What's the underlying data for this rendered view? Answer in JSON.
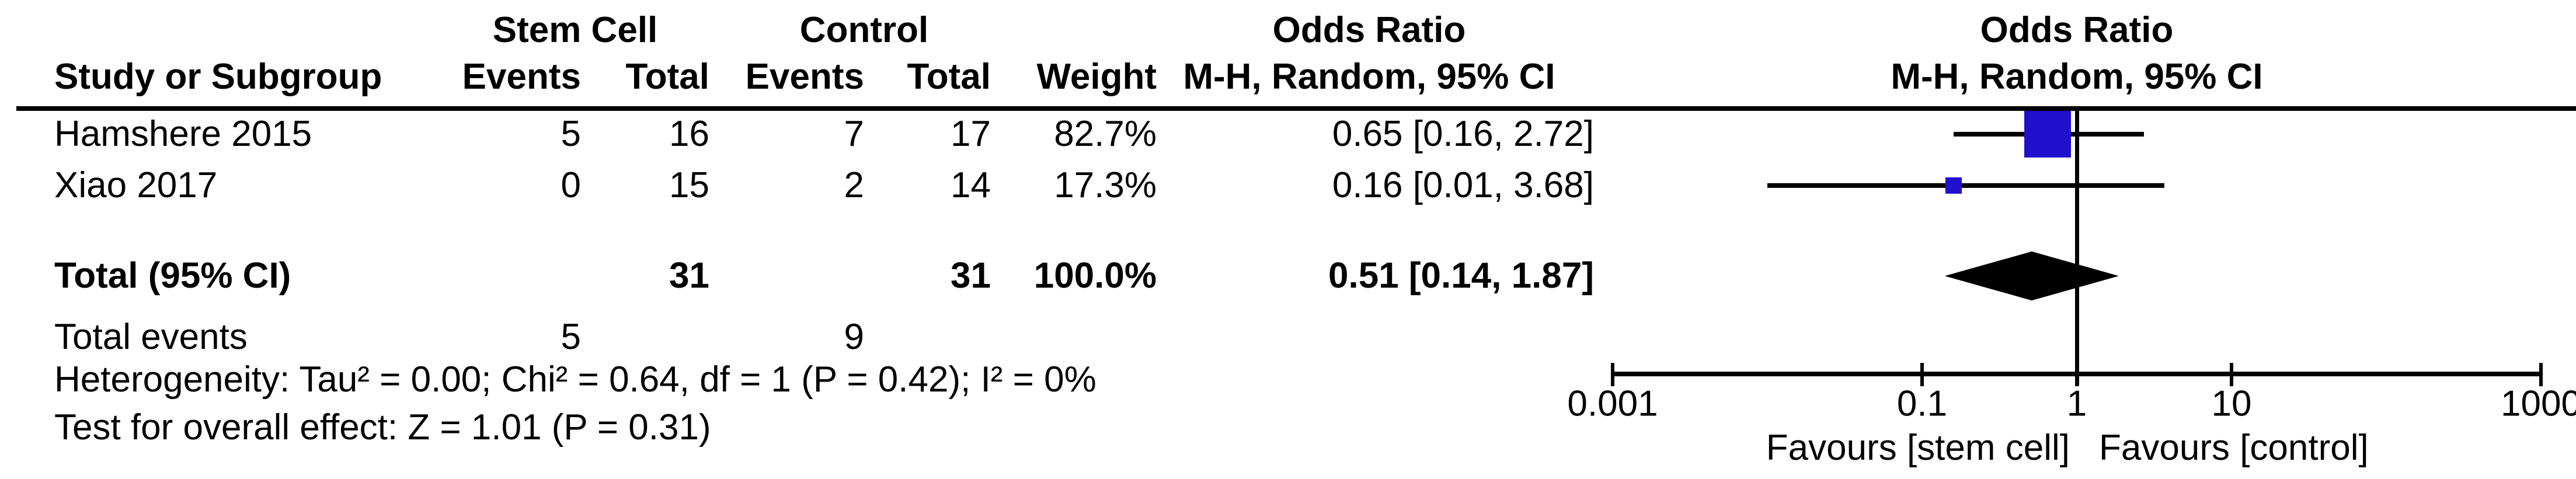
{
  "header": {
    "group_stem": "Stem Cell",
    "group_control": "Control",
    "or_title_left": "Odds Ratio",
    "or_title_right": "Odds Ratio",
    "col_study": "Study or Subgroup",
    "col_events_stem": "Events",
    "col_total_stem": "Total",
    "col_events_control": "Events",
    "col_total_control": "Total",
    "col_weight": "Weight",
    "col_method_left": "M-H, Random, 95% CI",
    "col_method_right": "M-H, Random, 95% CI"
  },
  "rows": [
    {
      "study": "Hamshere 2015",
      "events_stem": "5",
      "total_stem": "16",
      "events_control": "7",
      "total_control": "17",
      "weight": "82.7%",
      "or_ci": "0.65 [0.16, 2.72]"
    },
    {
      "study": "Xiao 2017",
      "events_stem": "0",
      "total_stem": "15",
      "events_control": "2",
      "total_control": "14",
      "weight": "17.3%",
      "or_ci": "0.16 [0.01, 3.68]"
    }
  ],
  "total_row": {
    "label": "Total (95% CI)",
    "total_stem": "31",
    "total_control": "31",
    "weight": "100.0%",
    "or_ci": "0.51 [0.14, 1.87]"
  },
  "total_events": {
    "label": "Total events",
    "events_stem": "5",
    "events_control": "9"
  },
  "footnotes": {
    "heterogeneity": "Heterogeneity: Tau² = 0.00; Chi² = 0.64, df = 1 (P = 0.42); I² = 0%",
    "overall_effect": "Test for overall effect: Z = 1.01 (P = 0.31)"
  },
  "axis": {
    "tick_labels": [
      "0.001",
      "0.1",
      "1",
      "10",
      "1000"
    ],
    "favours_left": "Favours [stem cell]",
    "favours_right": "Favours [control]"
  },
  "colors": {
    "marker_blue": "#2010CC",
    "line_black": "#000000"
  },
  "chart_data": {
    "type": "forest",
    "scale": "log10",
    "effect_measure": "Odds Ratio, M-H, Random, 95% CI",
    "x_ticks": [
      0.001,
      0.1,
      1,
      10,
      1000
    ],
    "null_line": 1,
    "studies": [
      {
        "name": "Hamshere 2015",
        "or": 0.65,
        "ci_low": 0.16,
        "ci_high": 2.72,
        "weight_pct": 82.7
      },
      {
        "name": "Xiao 2017",
        "or": 0.16,
        "ci_low": 0.01,
        "ci_high": 3.68,
        "weight_pct": 17.3
      }
    ],
    "total": {
      "name": "Total (95% CI)",
      "or": 0.51,
      "ci_low": 0.14,
      "ci_high": 1.87,
      "weight_pct": 100.0
    },
    "xlabel_left": "Favours [stem cell]",
    "xlabel_right": "Favours [control]"
  }
}
